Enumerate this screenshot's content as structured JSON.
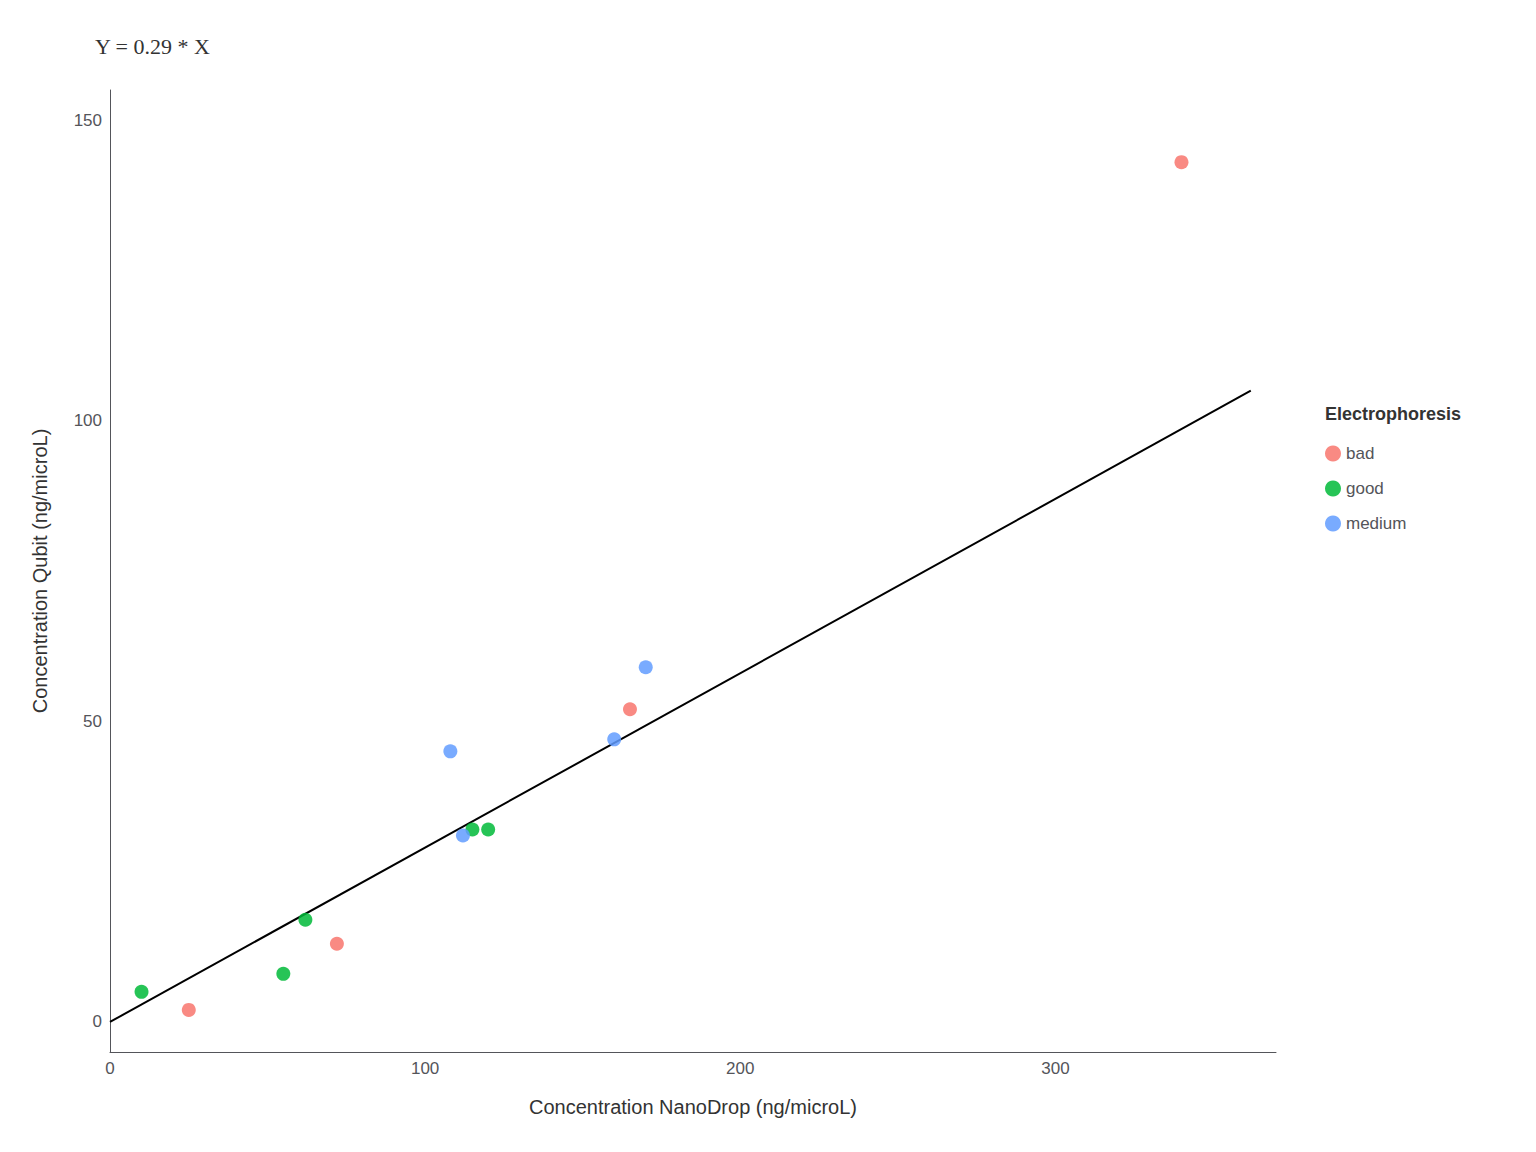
{
  "chart_data": {
    "type": "scatter",
    "title": "Y = 0.29 * X",
    "xlabel": "Concentration NanoDrop (ng/microL)",
    "ylabel": "Concentration Qubit (ng/microL)",
    "legend_title": "Electrophoresis",
    "legend": "right",
    "grid": false,
    "xlim": [
      0,
      370
    ],
    "ylim": [
      -5,
      155
    ],
    "xticks": [
      0,
      100,
      200,
      300
    ],
    "yticks": [
      0,
      50,
      100,
      150
    ],
    "series": [
      {
        "name": "bad",
        "color": "#F8766D",
        "x": [
          25,
          72,
          165,
          340
        ],
        "values": [
          2,
          13,
          52,
          143
        ]
      },
      {
        "name": "good",
        "color": "#00BA38",
        "x": [
          10,
          55,
          62,
          115,
          120
        ],
        "values": [
          5,
          8,
          17,
          32,
          32
        ]
      },
      {
        "name": "medium",
        "color": "#619CFF",
        "x": [
          108,
          112,
          160,
          170
        ],
        "values": [
          45,
          31,
          47,
          59
        ]
      },
      {
        "type": "line",
        "color": "#000000",
        "x": [
          0,
          362
        ],
        "values": [
          0,
          104.98
        ]
      }
    ]
  }
}
